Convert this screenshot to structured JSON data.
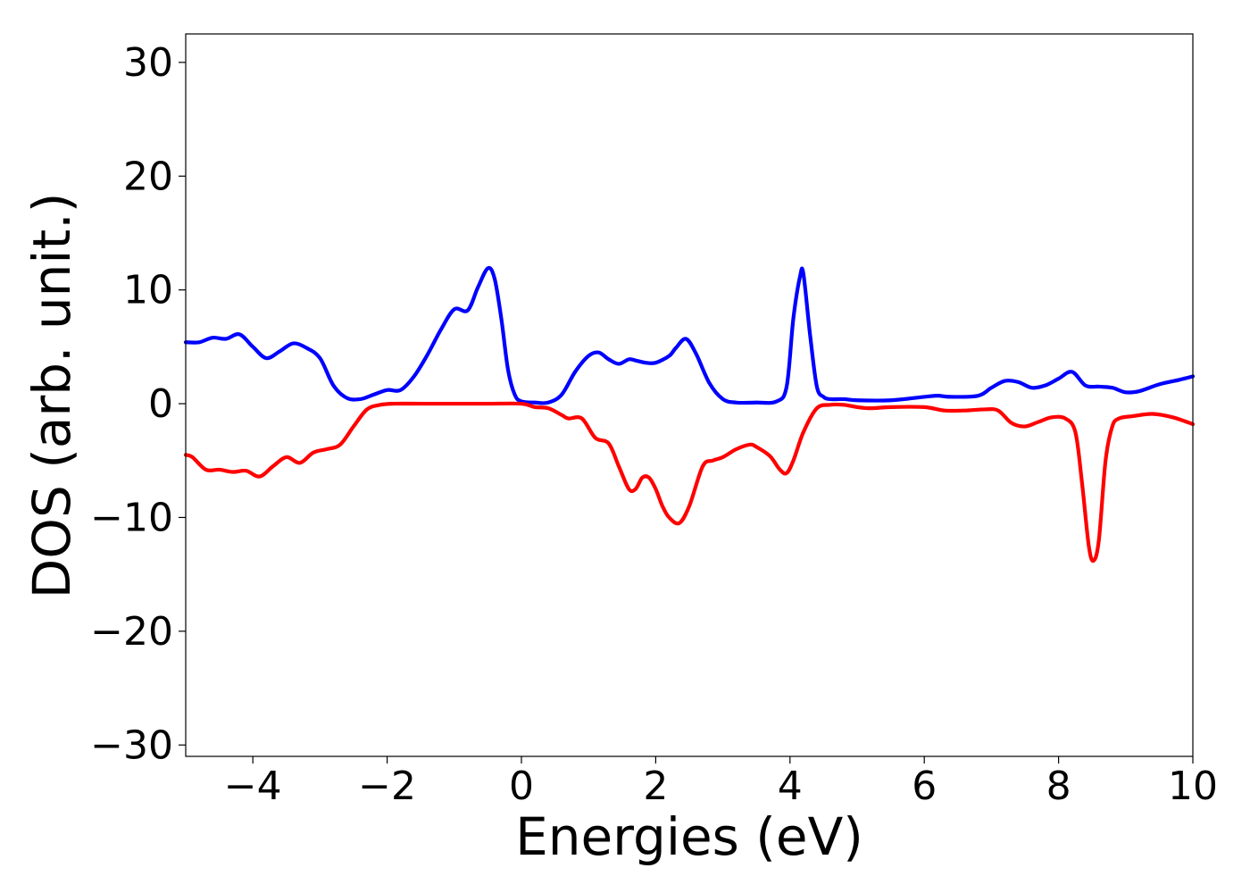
{
  "chart_data": {
    "type": "line",
    "title": "",
    "xlabel": "Energies (eV)",
    "ylabel": "DOS (arb. unit.)",
    "xlim": [
      -5,
      10
    ],
    "ylim": [
      -31,
      32.5
    ],
    "x_ticks": [
      -4,
      -2,
      0,
      2,
      4,
      6,
      8,
      10
    ],
    "x_tick_labels": [
      "−4",
      "−2",
      "0",
      "2",
      "4",
      "6",
      "8",
      "10"
    ],
    "y_ticks": [
      -30,
      -20,
      -10,
      0,
      10,
      20,
      30
    ],
    "y_tick_labels": [
      "−30",
      "−20",
      "−10",
      "0",
      "10",
      "20",
      "30"
    ],
    "grid": false,
    "legend": "none",
    "series": [
      {
        "color": "#0000ff",
        "x": [
          -5.0,
          -4.8,
          -4.6,
          -4.4,
          -4.2,
          -4.0,
          -3.8,
          -3.6,
          -3.4,
          -3.2,
          -3.0,
          -2.8,
          -2.6,
          -2.4,
          -2.2,
          -2.0,
          -1.8,
          -1.6,
          -1.4,
          -1.2,
          -1.0,
          -0.8,
          -0.65,
          -0.5,
          -0.4,
          -0.3,
          -0.2,
          -0.1,
          0.0,
          0.2,
          0.4,
          0.6,
          0.8,
          1.0,
          1.15,
          1.3,
          1.45,
          1.6,
          1.7,
          1.85,
          2.0,
          2.2,
          2.3,
          2.45,
          2.6,
          2.8,
          3.0,
          3.2,
          3.5,
          3.8,
          3.95,
          4.05,
          4.15,
          4.2,
          4.3,
          4.4,
          4.5,
          4.6,
          4.8,
          5.0,
          5.5,
          6.0,
          6.2,
          6.4,
          6.8,
          7.0,
          7.2,
          7.4,
          7.6,
          7.8,
          8.0,
          8.2,
          8.4,
          8.6,
          8.8,
          9.0,
          9.2,
          9.5,
          9.8,
          10.0
        ],
        "y": [
          5.4,
          5.4,
          5.8,
          5.7,
          6.1,
          5.0,
          4.0,
          4.6,
          5.3,
          4.9,
          4.0,
          1.6,
          0.5,
          0.4,
          0.8,
          1.2,
          1.2,
          2.4,
          4.3,
          6.5,
          8.3,
          8.2,
          10.2,
          11.9,
          11.0,
          7.5,
          3.0,
          0.8,
          0.2,
          0.1,
          0.1,
          0.8,
          2.8,
          4.2,
          4.5,
          3.9,
          3.5,
          3.9,
          3.8,
          3.6,
          3.6,
          4.2,
          4.9,
          5.7,
          4.4,
          1.8,
          0.4,
          0.1,
          0.1,
          0.2,
          1.5,
          7.5,
          11.2,
          11.4,
          6.0,
          1.5,
          0.6,
          0.4,
          0.4,
          0.3,
          0.3,
          0.6,
          0.7,
          0.6,
          0.7,
          1.4,
          2.0,
          1.9,
          1.4,
          1.6,
          2.2,
          2.8,
          1.6,
          1.5,
          1.4,
          1.0,
          1.1,
          1.7,
          2.1,
          2.4
        ]
      },
      {
        "color": "#ff0000",
        "x": [
          -5.0,
          -4.9,
          -4.7,
          -4.5,
          -4.3,
          -4.1,
          -3.9,
          -3.7,
          -3.5,
          -3.3,
          -3.1,
          -2.9,
          -2.7,
          -2.5,
          -2.3,
          -2.1,
          -1.9,
          -1.5,
          -1.0,
          -0.5,
          0.0,
          0.2,
          0.4,
          0.6,
          0.7,
          0.9,
          1.1,
          1.3,
          1.45,
          1.6,
          1.7,
          1.8,
          1.9,
          2.0,
          2.1,
          2.2,
          2.35,
          2.5,
          2.7,
          2.85,
          3.0,
          3.2,
          3.4,
          3.5,
          3.7,
          3.85,
          3.95,
          4.05,
          4.2,
          4.4,
          4.6,
          4.8,
          5.0,
          5.2,
          5.5,
          6.0,
          6.3,
          6.6,
          6.9,
          7.1,
          7.3,
          7.5,
          7.7,
          7.9,
          8.1,
          8.25,
          8.35,
          8.45,
          8.52,
          8.6,
          8.7,
          8.8,
          8.9,
          9.1,
          9.4,
          9.7,
          10.0
        ],
        "y": [
          -4.5,
          -4.7,
          -5.8,
          -5.8,
          -6.0,
          -5.9,
          -6.4,
          -5.5,
          -4.7,
          -5.2,
          -4.3,
          -4.0,
          -3.6,
          -2.0,
          -0.5,
          -0.1,
          0.0,
          0.0,
          0.0,
          0.0,
          0.0,
          -0.3,
          -0.4,
          -1.0,
          -1.3,
          -1.3,
          -3.0,
          -3.5,
          -5.5,
          -7.5,
          -7.5,
          -6.5,
          -6.5,
          -7.5,
          -9.0,
          -10.0,
          -10.5,
          -9.0,
          -5.5,
          -5.0,
          -4.7,
          -4.0,
          -3.6,
          -3.8,
          -4.6,
          -5.8,
          -6.1,
          -5.0,
          -2.5,
          -0.4,
          -0.1,
          -0.1,
          -0.3,
          -0.4,
          -0.3,
          -0.3,
          -0.6,
          -0.6,
          -0.5,
          -0.6,
          -1.7,
          -2.0,
          -1.6,
          -1.2,
          -1.3,
          -2.5,
          -7.0,
          -12.5,
          -13.8,
          -12.0,
          -5.0,
          -2.0,
          -1.3,
          -1.1,
          -0.9,
          -1.2,
          -1.8
        ]
      }
    ]
  }
}
